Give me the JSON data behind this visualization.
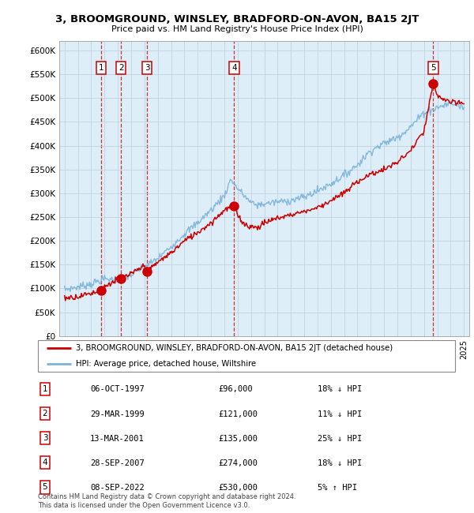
{
  "title": "3, BROOMGROUND, WINSLEY, BRADFORD-ON-AVON, BA15 2JT",
  "subtitle": "Price paid vs. HM Land Registry's House Price Index (HPI)",
  "ylim": [
    0,
    620000
  ],
  "yticks": [
    0,
    50000,
    100000,
    150000,
    200000,
    250000,
    300000,
    350000,
    400000,
    450000,
    500000,
    550000,
    600000
  ],
  "xlim_start": 1994.6,
  "xlim_end": 2025.4,
  "sale_dates_year": [
    1997.76,
    1999.24,
    2001.2,
    2007.74,
    2022.69
  ],
  "sale_prices": [
    96000,
    121000,
    135000,
    274000,
    530000
  ],
  "sale_labels": [
    "1",
    "2",
    "3",
    "4",
    "5"
  ],
  "hpi_color": "#7ab3d9",
  "price_color": "#cc0000",
  "bg_color": "#ddeeff",
  "legend_label_price": "3, BROOMGROUND, WINSLEY, BRADFORD-ON-AVON, BA15 2JT (detached house)",
  "legend_label_hpi": "HPI: Average price, detached house, Wiltshire",
  "table_data": [
    [
      "1",
      "06-OCT-1997",
      "£96,000",
      "18% ↓ HPI"
    ],
    [
      "2",
      "29-MAR-1999",
      "£121,000",
      "11% ↓ HPI"
    ],
    [
      "3",
      "13-MAR-2001",
      "£135,000",
      "25% ↓ HPI"
    ],
    [
      "4",
      "28-SEP-2007",
      "£274,000",
      "18% ↓ HPI"
    ],
    [
      "5",
      "08-SEP-2022",
      "£530,000",
      "5% ↑ HPI"
    ]
  ],
  "footer": "Contains HM Land Registry data © Crown copyright and database right 2024.\nThis data is licensed under the Open Government Licence v3.0.",
  "grid_color": "#bbccdd",
  "vline_color": "#cc0000",
  "hpi_anchors_x": [
    1995,
    1996,
    1997,
    1998,
    1999,
    2000,
    2001,
    2002,
    2003,
    2004,
    2005,
    2006,
    2007,
    2007.5,
    2008,
    2008.5,
    2009,
    2009.5,
    2010,
    2011,
    2012,
    2013,
    2014,
    2015,
    2016,
    2017,
    2018,
    2019,
    2020,
    2021,
    2022,
    2023,
    2024,
    2025
  ],
  "hpi_anchors_y": [
    98000,
    103000,
    110000,
    120000,
    118000,
    128000,
    145000,
    163000,
    188000,
    215000,
    238000,
    265000,
    295000,
    330000,
    310000,
    295000,
    280000,
    275000,
    278000,
    282000,
    285000,
    292000,
    305000,
    320000,
    338000,
    360000,
    390000,
    405000,
    418000,
    440000,
    470000,
    480000,
    490000,
    480000
  ],
  "price_anchors_x": [
    1995,
    1996,
    1997,
    1997.76,
    1998,
    1999,
    1999.24,
    2000,
    2001,
    2001.2,
    2002,
    2003,
    2004,
    2005,
    2006,
    2007,
    2007.74,
    2008,
    2008.5,
    2009,
    2009.5,
    2010,
    2011,
    2012,
    2013,
    2014,
    2015,
    2016,
    2017,
    2018,
    2019,
    2020,
    2021,
    2022,
    2022.69,
    2022.9,
    2023,
    2023.5,
    2024,
    2025
  ],
  "price_anchors_y": [
    80000,
    83000,
    90000,
    96000,
    105000,
    118000,
    121000,
    130000,
    148000,
    135000,
    155000,
    175000,
    200000,
    218000,
    238000,
    265000,
    274000,
    255000,
    235000,
    230000,
    228000,
    238000,
    248000,
    255000,
    262000,
    270000,
    285000,
    300000,
    325000,
    340000,
    350000,
    365000,
    390000,
    430000,
    530000,
    510000,
    505000,
    498000,
    490000,
    490000
  ]
}
